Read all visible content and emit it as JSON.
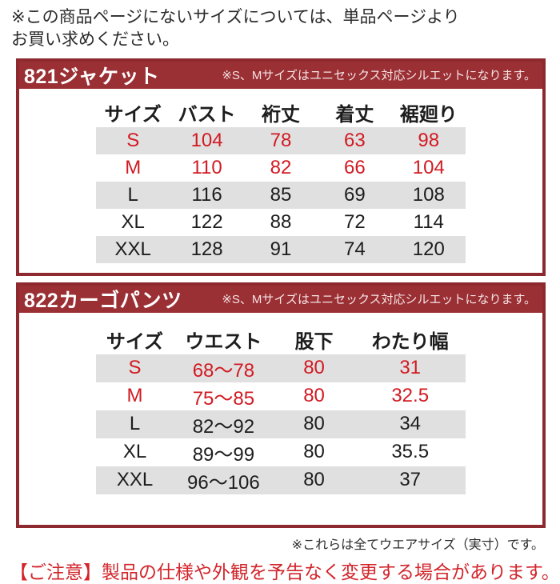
{
  "page": {
    "top_note_line1": "※この商品ページにないサイズについては、単品ページより",
    "top_note_line2": "お買い求めください。",
    "footer_note": "※これらは全てウエアサイズ（実寸）です。",
    "caution": "【ご注意】製品の仕様や外観を予告なく変更する場合があります。"
  },
  "colors": {
    "bar_background": "#9a2f34",
    "box_border": "#8e2a2f",
    "shaded_row_background": "#e0e0e0",
    "highlight_text": "#d11a22",
    "body_text": "#1d1d1d",
    "bar_title_text": "#ffffff",
    "bar_note_text": "#f5e3e3"
  },
  "sections": [
    {
      "title": "821ジャケット",
      "note": "※S、Mサイズはユニセックス対応シルエットになります。",
      "columns": [
        "サイズ",
        "バスト",
        "裄丈",
        "着丈",
        "裾廻り"
      ],
      "col_widths": [
        "20%",
        "20%",
        "20%",
        "20%",
        "20%"
      ],
      "rows": [
        {
          "cells": [
            "S",
            "104",
            "78",
            "63",
            "98"
          ],
          "highlight": true,
          "shaded": true
        },
        {
          "cells": [
            "M",
            "110",
            "82",
            "66",
            "104"
          ],
          "highlight": true,
          "shaded": false
        },
        {
          "cells": [
            "L",
            "116",
            "85",
            "69",
            "108"
          ],
          "highlight": false,
          "shaded": true
        },
        {
          "cells": [
            "XL",
            "122",
            "88",
            "72",
            "114"
          ],
          "highlight": false,
          "shaded": false
        },
        {
          "cells": [
            "XXL",
            "128",
            "91",
            "74",
            "120"
          ],
          "highlight": false,
          "shaded": true
        }
      ]
    },
    {
      "title": "822カーゴパンツ",
      "note": "※S、Mサイズはユニセックス対応シルエットになります。",
      "columns": [
        "サイズ",
        "ウエスト",
        "股下",
        "わたり幅"
      ],
      "col_widths": [
        "21%",
        "27%",
        "22%",
        "30%"
      ],
      "rows": [
        {
          "cells": [
            "S",
            "68〜78",
            "80",
            "31"
          ],
          "highlight": true,
          "shaded": true
        },
        {
          "cells": [
            "M",
            "75〜85",
            "80",
            "32.5"
          ],
          "highlight": true,
          "shaded": false
        },
        {
          "cells": [
            "L",
            "82〜92",
            "80",
            "34"
          ],
          "highlight": false,
          "shaded": true
        },
        {
          "cells": [
            "XL",
            "89〜99",
            "80",
            "35.5"
          ],
          "highlight": false,
          "shaded": false
        },
        {
          "cells": [
            "XXL",
            "96〜106",
            "80",
            "37"
          ],
          "highlight": false,
          "shaded": true
        }
      ]
    }
  ]
}
